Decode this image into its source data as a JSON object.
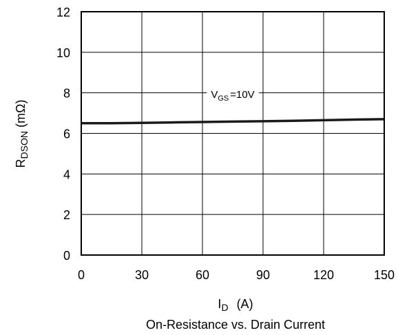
{
  "chart_data": {
    "type": "line",
    "title": "On-Resistance vs. Drain Current",
    "xlabel": {
      "main": "I",
      "sub": "D",
      "unit": "(A)"
    },
    "ylabel": {
      "main": "R",
      "sub": "DSON",
      "unit": "(mΩ)"
    },
    "xlim": [
      0,
      150
    ],
    "ylim": [
      0,
      12
    ],
    "xticks": [
      0,
      30,
      60,
      90,
      120,
      150
    ],
    "yticks": [
      0,
      2,
      4,
      6,
      8,
      10,
      12
    ],
    "xtick_labels": [
      "0",
      "30",
      "60",
      "90",
      "120",
      "150"
    ],
    "ytick_labels": [
      "0",
      "2",
      "4",
      "6",
      "8",
      "10",
      "12"
    ],
    "grid": true,
    "series": [
      {
        "x": [
          0,
          15,
          30,
          45,
          60,
          75,
          90,
          105,
          120,
          135,
          150
        ],
        "y": [
          6.5,
          6.5,
          6.52,
          6.54,
          6.56,
          6.58,
          6.6,
          6.62,
          6.65,
          6.68,
          6.7
        ],
        "color": "#1a1a1a"
      }
    ],
    "annotations": [
      {
        "main": "V",
        "sub": "GS",
        "text": "=10V",
        "x": 75,
        "y": 7.95
      }
    ]
  }
}
